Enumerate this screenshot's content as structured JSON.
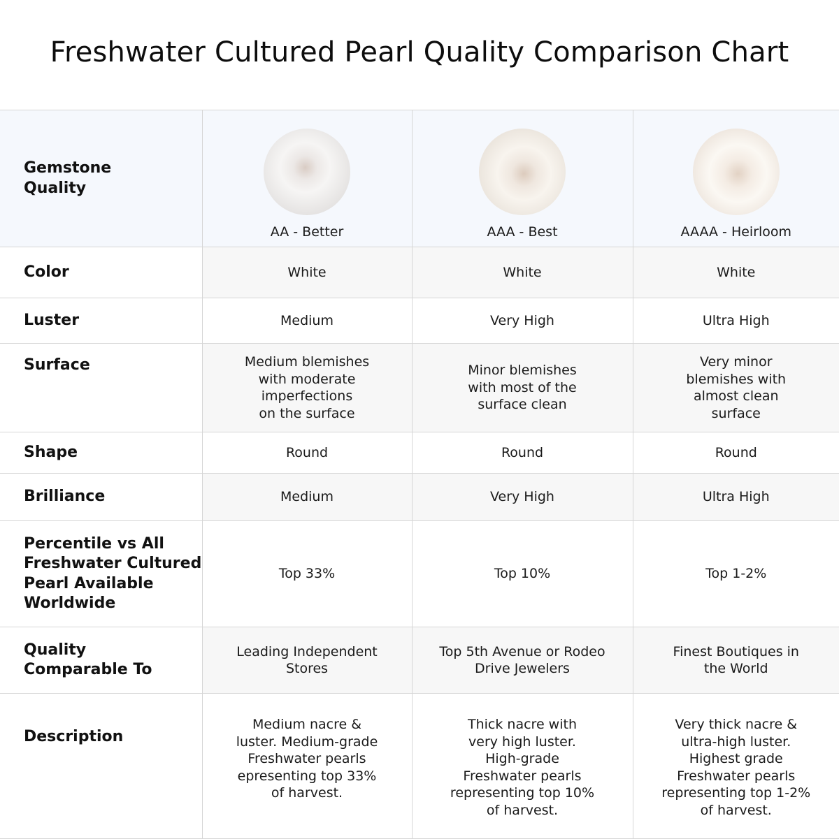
{
  "title": "Freshwater Cultured Pearl Quality Comparison Chart",
  "header": {
    "label": "Gemstone\nQuality",
    "grades": [
      {
        "name": "AA - Better",
        "image": "white pearl"
      },
      {
        "name": "AAA - Best",
        "image": "white pearl"
      },
      {
        "name": "AAAA - Heirloom",
        "image": "white pearl"
      }
    ]
  },
  "rows": [
    {
      "label": "Color",
      "values": [
        "White",
        "White",
        "White"
      ]
    },
    {
      "label": "Luster",
      "values": [
        "Medium",
        "Very High",
        "Ultra High"
      ]
    },
    {
      "label": "Surface",
      "values": [
        "Medium blemishes\nwith moderate\nimperfections\non the surface",
        "Minor blemishes\nwith most of the\nsurface clean",
        "Very minor\nblemishes with\nalmost clean\nsurface"
      ]
    },
    {
      "label": "Shape",
      "values": [
        "Round",
        "Round",
        "Round"
      ]
    },
    {
      "label": "Brilliance",
      "values": [
        "Medium",
        "Very High",
        "Ultra High"
      ]
    },
    {
      "label": "Percentile vs All\nFreshwater Cultured\nPearl Available\nWorldwide",
      "values": [
        "Top 33%",
        "Top 10%",
        "Top 1-2%"
      ]
    },
    {
      "label": "Quality\nComparable To",
      "values": [
        "Leading Independent\nStores",
        "Top 5th Avenue or Rodeo\nDrive Jewelers",
        "Finest Boutiques in\nthe World"
      ]
    },
    {
      "label": "Description",
      "values": [
        "Medium nacre &\nluster. Medium-grade\nFreshwater pearls\nepresenting top 33%\nof harvest.",
        "Thick nacre with\nvery high luster.\nHigh-grade\nFreshwater pearls\nrepresenting top 10%\nof harvest.",
        "Very thick nacre &\nultra-high luster.\nHighest grade\nFreshwater pearls\nrepresenting top 1-2%\nof harvest."
      ]
    }
  ],
  "colors": {
    "header_bg": "#f5f8fd",
    "alt_row_bg": "#f7f7f7",
    "border": "#d6d6d6"
  }
}
